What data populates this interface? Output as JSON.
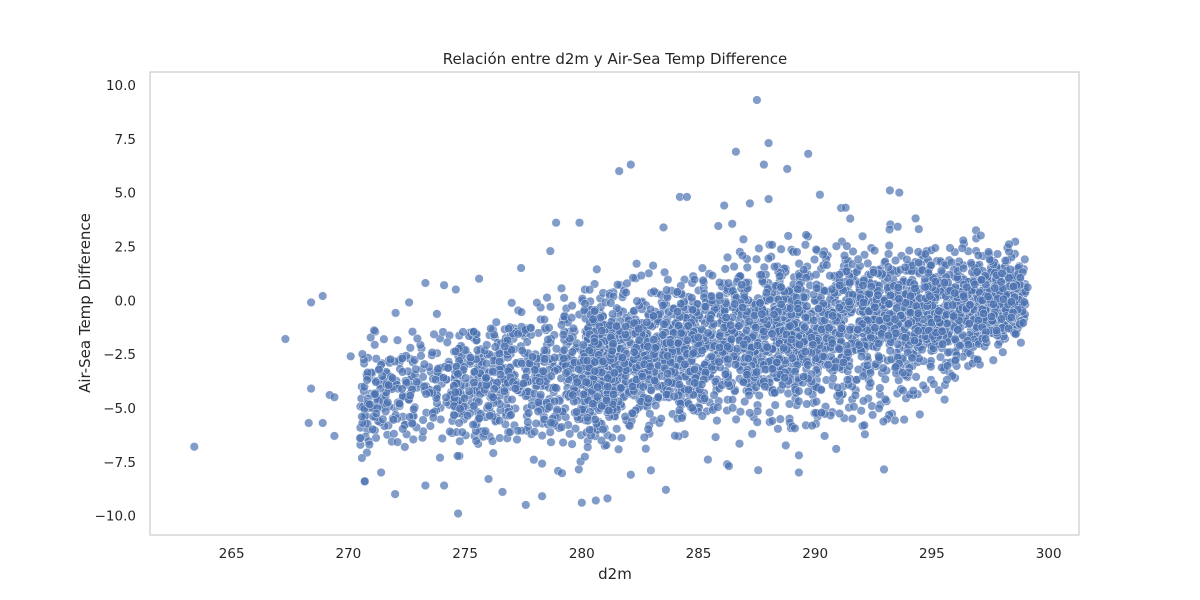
{
  "chart_data": {
    "type": "scatter",
    "title": "Relación entre d2m y Air-Sea Temp Difference",
    "xlabel": "d2m",
    "ylabel": "Air-Sea Temp Difference",
    "xlim": [
      261.5,
      301.3
    ],
    "ylim": [
      -10.9,
      10.6
    ],
    "xticks": [
      265,
      270,
      275,
      280,
      285,
      290,
      295,
      300
    ],
    "xtick_labels": [
      "265",
      "270",
      "275",
      "280",
      "285",
      "290",
      "295",
      "300"
    ],
    "yticks": [
      10.0,
      7.5,
      5.0,
      2.5,
      0.0,
      -2.5,
      -5.0,
      -7.5,
      -10.0
    ],
    "ytick_labels": [
      "10.0",
      "7.5",
      "5.0",
      "2.5",
      "0.0",
      "−2.5",
      "−5.0",
      "−7.5",
      "−10.0"
    ],
    "grid": false,
    "legend": "none",
    "point_color": "#4c72b0",
    "point_edge_color": "#ffffff",
    "point_alpha": 0.7,
    "trend": {
      "description": "dense cloud; mean difference rises with d2m",
      "x_range": [
        270,
        299
      ],
      "mean_at_270": -4.6,
      "mean_at_285": -2.4,
      "mean_at_298": 0.0
    },
    "points": [
      [
        263.4,
        -6.8
      ],
      [
        267.3,
        -1.8
      ],
      [
        268.4,
        -0.1
      ],
      [
        268.9,
        0.2
      ],
      [
        268.4,
        -4.1
      ],
      [
        268.3,
        -5.7
      ],
      [
        268.9,
        -5.7
      ],
      [
        269.2,
        -4.4
      ],
      [
        269.4,
        -4.5
      ],
      [
        269.4,
        -6.3
      ],
      [
        270.1,
        -2.6
      ],
      [
        270.6,
        -2.5
      ],
      [
        270.5,
        -6.4
      ],
      [
        270.9,
        -6.7
      ],
      [
        270.8,
        -3.7
      ],
      [
        271.1,
        -1.4
      ],
      [
        271.4,
        -8.0
      ],
      [
        270.7,
        -8.4
      ],
      [
        272.0,
        -9.0
      ],
      [
        272.6,
        -0.1
      ],
      [
        273.3,
        0.8
      ],
      [
        274.1,
        0.7
      ],
      [
        274.6,
        0.5
      ],
      [
        275.6,
        1.0
      ],
      [
        273.3,
        -8.6
      ],
      [
        274.1,
        -8.6
      ],
      [
        274.7,
        -9.9
      ],
      [
        276.0,
        -8.3
      ],
      [
        276.6,
        -8.9
      ],
      [
        277.6,
        -9.5
      ],
      [
        278.3,
        -9.1
      ],
      [
        280.0,
        -9.4
      ],
      [
        280.6,
        -9.3
      ],
      [
        281.1,
        -9.2
      ],
      [
        277.4,
        1.5
      ],
      [
        278.9,
        3.6
      ],
      [
        279.9,
        3.6
      ],
      [
        281.6,
        6.0
      ],
      [
        282.1,
        6.3
      ],
      [
        284.2,
        4.8
      ],
      [
        284.5,
        4.8
      ],
      [
        286.1,
        4.4
      ],
      [
        286.6,
        6.9
      ],
      [
        287.2,
        4.5
      ],
      [
        287.5,
        9.3
      ],
      [
        287.8,
        6.3
      ],
      [
        288.0,
        7.3
      ],
      [
        288.0,
        4.7
      ],
      [
        288.8,
        6.1
      ],
      [
        289.7,
        6.8
      ],
      [
        290.2,
        4.9
      ],
      [
        291.3,
        4.3
      ],
      [
        293.2,
        5.1
      ],
      [
        293.6,
        5.0
      ],
      [
        294.3,
        3.8
      ],
      [
        298.3,
        2.6
      ],
      [
        299.0,
        0.4
      ],
      [
        299.1,
        0.6
      ],
      [
        294.2,
        -4.2
      ],
      [
        293.0,
        -4.6
      ],
      [
        292.1,
        -5.8
      ],
      [
        290.9,
        -6.9
      ],
      [
        290.4,
        -6.3
      ],
      [
        289.3,
        -7.2
      ],
      [
        289.3,
        -8.0
      ],
      [
        287.3,
        -6.2
      ],
      [
        286.3,
        -7.7
      ],
      [
        285.4,
        -7.4
      ],
      [
        283.6,
        -8.8
      ],
      [
        282.1,
        -8.1
      ],
      [
        296.0,
        -2.8
      ],
      [
        297.3,
        -1.8
      ],
      [
        298.4,
        -0.8
      ],
      [
        295.3,
        -0.5
      ],
      [
        292.5,
        1.3
      ],
      [
        283.4,
        -5.5
      ],
      [
        279.8,
        -3.8
      ],
      [
        276.2,
        -4.5
      ],
      [
        281.7,
        -6.4
      ],
      [
        285.9,
        -2.2
      ]
    ]
  }
}
